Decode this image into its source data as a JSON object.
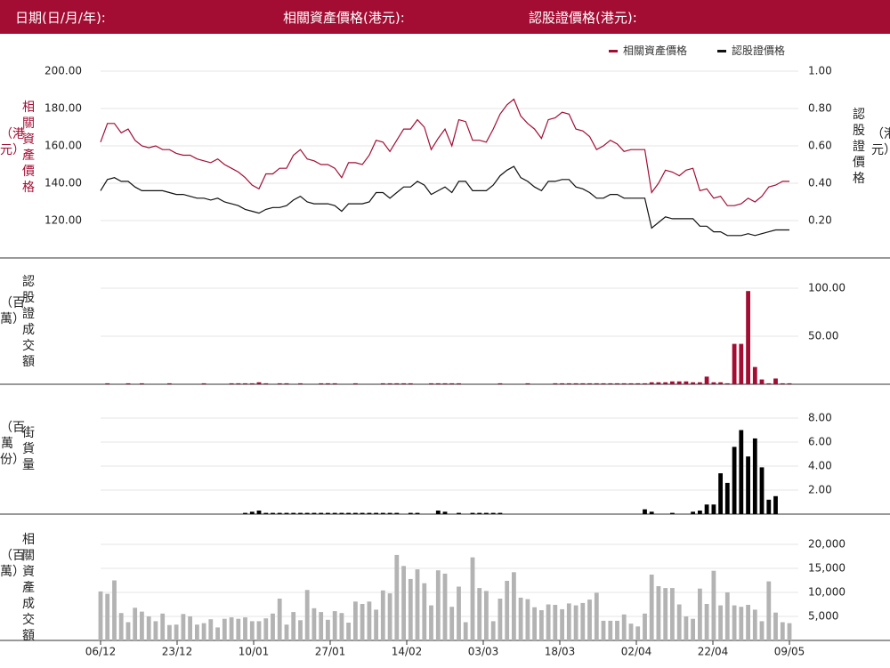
{
  "header": {
    "date_label": "日期(日/月/年):",
    "underlying_label": "相關資產價格(港元):",
    "warrant_label": "認股證價格(港元):"
  },
  "colors": {
    "header_bg": "#a30d33",
    "underlying": "#a30d33",
    "warrant": "#111111",
    "warrant_volume": "#a30d33",
    "outstanding": "#000000",
    "turnover": "#b3b3b3"
  },
  "panel_labels": {
    "price_left": "相關資產價格",
    "price_left_unit": "（港元）",
    "price_right": "認股證價格",
    "price_right_unit": "（港元）",
    "warrant_volume": "認股證成交額",
    "warrant_volume_unit": "（百萬）",
    "outstanding": "街貨量",
    "outstanding_unit": "（百萬份）",
    "turnover": "相關資產成交額",
    "turnover_unit": "（百萬）"
  },
  "chart_data": [
    {
      "type": "line",
      "series": [
        {
          "name": "相關資產價格",
          "axis": "left",
          "values": [
            162,
            172,
            172,
            167,
            169,
            163,
            160,
            159,
            160,
            158,
            158,
            156,
            155,
            155,
            153,
            152,
            151,
            153,
            150,
            148,
            146,
            143,
            139,
            137,
            145,
            145,
            148,
            148,
            155,
            158,
            153,
            152,
            150,
            150,
            148,
            143,
            151,
            151,
            150,
            155,
            163,
            162,
            157,
            163,
            169,
            169,
            174,
            170,
            158,
            164,
            169,
            160,
            174,
            173,
            163,
            163,
            162,
            169,
            177,
            182,
            185,
            176,
            172,
            169,
            164,
            174,
            175,
            178,
            177,
            169,
            168,
            165,
            158,
            160,
            163,
            161,
            157,
            158,
            158,
            158,
            135,
            140,
            147,
            146,
            144,
            147,
            148,
            136,
            137,
            132,
            133,
            128,
            128,
            129,
            132,
            130,
            133,
            138,
            139,
            141,
            141
          ]
        },
        {
          "name": "認股證價格",
          "axis": "right",
          "values": [
            0.36,
            0.42,
            0.43,
            0.41,
            0.41,
            0.38,
            0.36,
            0.36,
            0.36,
            0.36,
            0.35,
            0.34,
            0.34,
            0.33,
            0.32,
            0.32,
            0.31,
            0.32,
            0.3,
            0.29,
            0.28,
            0.26,
            0.25,
            0.24,
            0.26,
            0.27,
            0.27,
            0.28,
            0.31,
            0.33,
            0.3,
            0.29,
            0.29,
            0.29,
            0.28,
            0.25,
            0.29,
            0.29,
            0.29,
            0.3,
            0.35,
            0.35,
            0.32,
            0.35,
            0.38,
            0.38,
            0.41,
            0.39,
            0.34,
            0.36,
            0.38,
            0.35,
            0.41,
            0.41,
            0.36,
            0.36,
            0.36,
            0.39,
            0.44,
            0.47,
            0.49,
            0.43,
            0.41,
            0.38,
            0.36,
            0.41,
            0.41,
            0.42,
            0.42,
            0.38,
            0.37,
            0.35,
            0.32,
            0.32,
            0.34,
            0.34,
            0.32,
            0.32,
            0.32,
            0.32,
            0.16,
            0.19,
            0.22,
            0.21,
            0.21,
            0.21,
            0.21,
            0.17,
            0.17,
            0.14,
            0.14,
            0.12,
            0.12,
            0.12,
            0.13,
            0.12,
            0.13,
            0.14,
            0.15,
            0.15,
            0.15
          ]
        }
      ],
      "left_axis": {
        "ticks": [
          "200.00",
          "180.00",
          "160.00",
          "140.00",
          "120.00"
        ],
        "ylim": [
          100,
          200
        ]
      },
      "right_axis": {
        "ticks": [
          "1.00",
          "0.80",
          "0.60",
          "0.40",
          "0.20"
        ],
        "ylim": [
          0,
          1
        ]
      },
      "legend": [
        {
          "label": "相關資產價格"
        },
        {
          "label": "認股證價格"
        }
      ],
      "legend_position": "top-right",
      "grid": true
    },
    {
      "type": "bar",
      "name": "認股證成交額",
      "values": [
        0,
        1,
        0,
        0,
        1,
        0,
        1,
        0,
        0,
        0,
        1,
        0,
        0,
        0,
        0,
        1,
        0,
        0,
        0,
        1,
        1,
        1,
        1,
        2,
        1,
        0,
        1,
        1,
        0,
        1,
        0,
        0,
        1,
        1,
        1,
        0,
        0,
        1,
        0,
        0,
        0,
        1,
        1,
        1,
        1,
        1,
        0,
        0,
        1,
        1,
        1,
        1,
        1,
        0,
        0,
        0,
        0,
        0,
        1,
        0,
        0,
        0,
        1,
        0,
        0,
        0,
        1,
        1,
        1,
        1,
        1,
        1,
        1,
        1,
        1,
        1,
        1,
        1,
        1,
        1,
        2,
        2,
        2,
        3,
        3,
        3,
        2,
        2,
        8,
        2,
        2,
        1,
        42,
        42,
        97,
        18,
        5,
        1,
        6,
        1,
        1
      ],
      "right_axis": {
        "ticks": [
          "100.00",
          "50.00"
        ],
        "ylim": [
          0,
          100
        ]
      },
      "grid": true
    },
    {
      "type": "bar",
      "name": "街貨量",
      "values": [
        0,
        0,
        0,
        0,
        0,
        0,
        0,
        0,
        0,
        0,
        0,
        0,
        0,
        0,
        0,
        0,
        0,
        0,
        0,
        0,
        0,
        0.1,
        0.2,
        0.3,
        0.1,
        0.1,
        0.1,
        0.1,
        0.1,
        0.1,
        0.1,
        0.1,
        0.1,
        0.1,
        0.1,
        0.1,
        0.1,
        0.1,
        0.1,
        0.1,
        0.1,
        0.1,
        0.1,
        0.1,
        0,
        0.1,
        0.1,
        0,
        0,
        0.3,
        0.2,
        0,
        0.1,
        0,
        0.1,
        0.1,
        0.1,
        0.1,
        0.1,
        0,
        0,
        0,
        0,
        0,
        0,
        0,
        0,
        0,
        0,
        0,
        0,
        0,
        0,
        0,
        0,
        0,
        0,
        0,
        0,
        0.4,
        0.2,
        0,
        0,
        0.1,
        0,
        0,
        0.2,
        0.3,
        0.8,
        0.8,
        3.4,
        2.6,
        5.6,
        7.0,
        4.8,
        6.3,
        3.9,
        1.2,
        1.5
      ],
      "right_axis": {
        "ticks": [
          "8.00",
          "6.00",
          "4.00",
          "2.00"
        ],
        "ylim": [
          0,
          8
        ]
      },
      "grid": true
    },
    {
      "type": "bar",
      "name": "相關資產成交額",
      "values": [
        10200,
        9700,
        12500,
        5700,
        3800,
        6800,
        6000,
        5000,
        4000,
        5600,
        3200,
        3300,
        5500,
        5000,
        3300,
        3600,
        4400,
        2700,
        4500,
        4800,
        4500,
        4800,
        4000,
        4000,
        4600,
        5600,
        8700,
        3300,
        5900,
        4200,
        10500,
        6700,
        5900,
        4300,
        6100,
        5700,
        3700,
        8100,
        7600,
        8100,
        6400,
        10400,
        9800,
        17800,
        15500,
        12800,
        14800,
        11900,
        7300,
        14600,
        13900,
        7000,
        11200,
        3800,
        17300,
        10900,
        10300,
        4000,
        8700,
        12400,
        14200,
        8900,
        8600,
        6900,
        6300,
        7500,
        7400,
        6500,
        7700,
        7300,
        7800,
        8500,
        9900,
        4100,
        4100,
        4100,
        5400,
        3500,
        2900,
        5600,
        13700,
        11300,
        10900,
        10900,
        7500,
        5000,
        4500,
        10800,
        7600,
        14500,
        7300,
        10000,
        7300,
        7000,
        7400,
        6400,
        4000,
        12300,
        5800,
        3800,
        3600
      ],
      "right_axis": {
        "ticks": [
          "20,000",
          "15,000",
          "10,000",
          "5,000"
        ],
        "ylim": [
          0,
          20000
        ]
      },
      "grid": true
    }
  ],
  "x_axis": {
    "tick_labels": [
      "06/12",
      "23/12",
      "10/01",
      "27/01",
      "14/02",
      "03/03",
      "18/03",
      "02/04",
      "22/04",
      "09/05"
    ]
  }
}
